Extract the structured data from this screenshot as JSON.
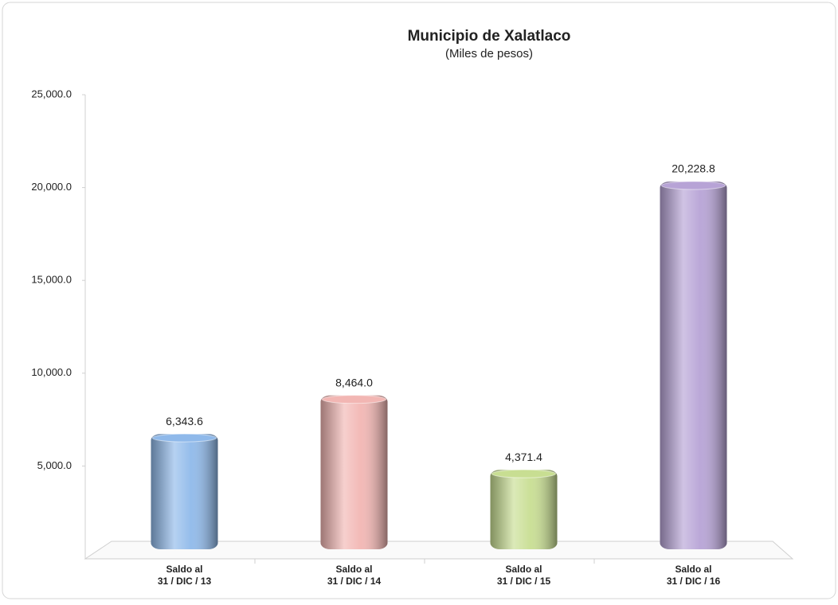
{
  "chart_data": {
    "type": "bar",
    "title": "Municipio de Xalatlaco",
    "subtitle": "(Miles de pesos)",
    "categories": [
      "Saldo al\n31 / DIC / 13",
      "Saldo al\n31 / DIC / 14",
      "Saldo al\n31 / DIC / 15",
      "Saldo al\n31 / DIC / 16"
    ],
    "values": [
      6343.6,
      8464.0,
      4371.4,
      20228.8
    ],
    "value_labels": [
      "6,343.6",
      "8,464.0",
      "4,371.4",
      "20,228.8"
    ],
    "colors": [
      "#8fb9ea",
      "#f2b6b3",
      "#c8de92",
      "#b7a3d6"
    ],
    "ylim": [
      0,
      25000
    ],
    "yticks": [
      {
        "value": 5000,
        "label": "5,000.0"
      },
      {
        "value": 10000,
        "label": "10,000.0"
      },
      {
        "value": 15000,
        "label": "15,000.0"
      },
      {
        "value": 20000,
        "label": "20,000.0"
      },
      {
        "value": 25000,
        "label": "25,000.0"
      }
    ],
    "grid": false
  }
}
